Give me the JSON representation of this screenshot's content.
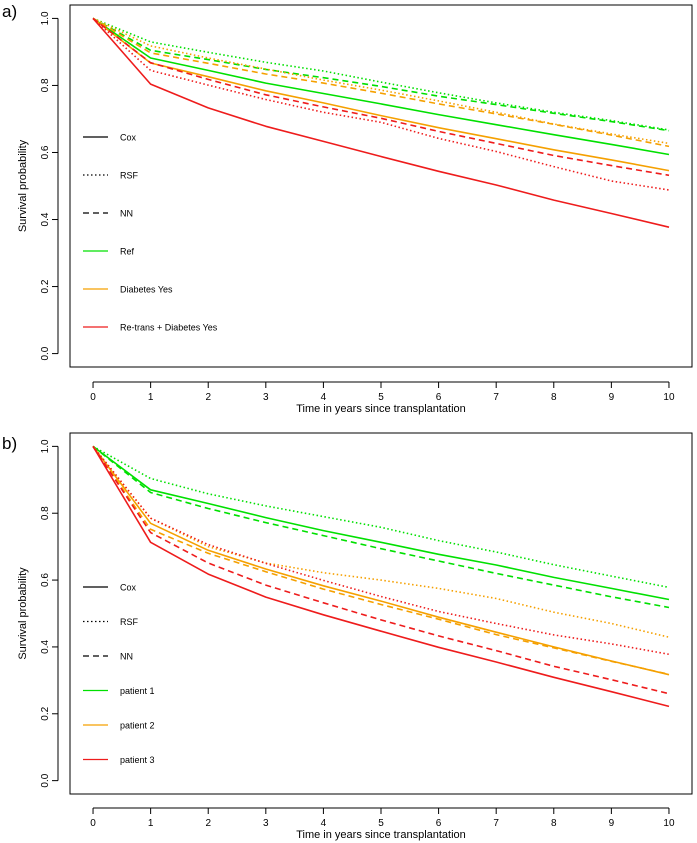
{
  "chart_data": [
    {
      "type": "line",
      "panel_label": "a)",
      "title": "",
      "xlabel": "Time in years since transplantation",
      "ylabel": "Survival probability",
      "x": [
        0,
        1,
        2,
        3,
        4,
        5,
        6,
        7,
        8,
        9,
        10
      ],
      "xticks": [
        "0",
        "1",
        "2",
        "3",
        "4",
        "5",
        "6",
        "7",
        "8",
        "9",
        "10"
      ],
      "yticks": [
        "0.0",
        "0.2",
        "0.4",
        "0.6",
        "0.8",
        "1.0"
      ],
      "xlim": [
        -0.4,
        10.4
      ],
      "ylim": [
        -0.04,
        1.04
      ],
      "legend": [
        {
          "label": "Cox",
          "style": "solid",
          "color": "#000000"
        },
        {
          "label": "RSF",
          "style": "dotted",
          "color": "#000000"
        },
        {
          "label": "NN",
          "style": "dashed",
          "color": "#000000"
        },
        {
          "label": "Ref",
          "style": "solid",
          "color": "#00e000"
        },
        {
          "label": "Diabetes Yes",
          "style": "solid",
          "color": "#f5a000"
        },
        {
          "label": "Re-trans + Diabetes Yes",
          "style": "solid",
          "color": "#ee1c1c"
        }
      ],
      "series": [
        {
          "name": "Ref Cox",
          "color": "#00e000",
          "style": "solid",
          "values": [
            1.0,
            0.882,
            0.845,
            0.807,
            0.776,
            0.745,
            0.713,
            0.683,
            0.653,
            0.624,
            0.594
          ]
        },
        {
          "name": "Ref RSF",
          "color": "#00e000",
          "style": "dotted",
          "values": [
            1.0,
            0.93,
            0.899,
            0.869,
            0.843,
            0.81,
            0.778,
            0.748,
            0.72,
            0.695,
            0.667
          ]
        },
        {
          "name": "Ref NN",
          "color": "#00e000",
          "style": "dashed",
          "values": [
            1.0,
            0.905,
            0.877,
            0.848,
            0.823,
            0.797,
            0.768,
            0.743,
            0.717,
            0.692,
            0.665
          ]
        },
        {
          "name": "Diabetes Yes Cox",
          "color": "#f5a000",
          "style": "solid",
          "values": [
            1.0,
            0.867,
            0.826,
            0.784,
            0.748,
            0.71,
            0.674,
            0.641,
            0.608,
            0.578,
            0.546
          ]
        },
        {
          "name": "Diabetes Yes RSF",
          "color": "#f5a000",
          "style": "dotted",
          "values": [
            1.0,
            0.918,
            0.882,
            0.849,
            0.816,
            0.786,
            0.754,
            0.72,
            0.685,
            0.655,
            0.627
          ]
        },
        {
          "name": "Diabetes Yes NN",
          "color": "#f5a000",
          "style": "dashed",
          "values": [
            1.0,
            0.897,
            0.866,
            0.834,
            0.807,
            0.777,
            0.745,
            0.715,
            0.684,
            0.652,
            0.618
          ]
        },
        {
          "name": "Re-trans + Diabetes Yes Cox",
          "color": "#ee1c1c",
          "style": "solid",
          "values": [
            1.0,
            0.804,
            0.733,
            0.678,
            0.633,
            0.588,
            0.544,
            0.503,
            0.458,
            0.418,
            0.377
          ]
        },
        {
          "name": "Re-trans + Diabetes Yes RSF",
          "color": "#ee1c1c",
          "style": "dotted",
          "values": [
            1.0,
            0.845,
            0.801,
            0.758,
            0.72,
            0.69,
            0.642,
            0.603,
            0.558,
            0.515,
            0.488
          ]
        },
        {
          "name": "Re-trans + Diabetes Yes NN",
          "color": "#ee1c1c",
          "style": "dashed",
          "values": [
            1.0,
            0.868,
            0.818,
            0.772,
            0.736,
            0.702,
            0.663,
            0.627,
            0.591,
            0.561,
            0.532
          ]
        }
      ]
    },
    {
      "type": "line",
      "panel_label": "b)",
      "title": "",
      "xlabel": "Time in years since transplantation",
      "ylabel": "Survival probability",
      "x": [
        0,
        1,
        2,
        3,
        4,
        5,
        6,
        7,
        8,
        9,
        10
      ],
      "xticks": [
        "0",
        "1",
        "2",
        "3",
        "4",
        "5",
        "6",
        "7",
        "8",
        "9",
        "10"
      ],
      "yticks": [
        "0.0",
        "0.2",
        "0.4",
        "0.6",
        "0.8",
        "1.0"
      ],
      "xlim": [
        -0.4,
        10.4
      ],
      "ylim": [
        -0.04,
        1.04
      ],
      "legend": [
        {
          "label": "Cox",
          "style": "solid",
          "color": "#000000"
        },
        {
          "label": "RSF",
          "style": "dotted",
          "color": "#000000"
        },
        {
          "label": "NN",
          "style": "dashed",
          "color": "#000000"
        },
        {
          "label": "patient 1",
          "style": "solid",
          "color": "#00e000"
        },
        {
          "label": "patient 2",
          "style": "solid",
          "color": "#f5a000"
        },
        {
          "label": "patient 3",
          "style": "solid",
          "color": "#ee1c1c"
        }
      ],
      "series": [
        {
          "name": "patient 1 Cox",
          "color": "#00e000",
          "style": "solid",
          "values": [
            1.0,
            0.87,
            0.829,
            0.787,
            0.748,
            0.713,
            0.677,
            0.645,
            0.608,
            0.575,
            0.542
          ]
        },
        {
          "name": "patient 1 RSF",
          "color": "#00e000",
          "style": "dotted",
          "values": [
            1.0,
            0.904,
            0.858,
            0.822,
            0.79,
            0.758,
            0.718,
            0.684,
            0.646,
            0.612,
            0.578
          ]
        },
        {
          "name": "patient 1 NN",
          "color": "#00e000",
          "style": "dashed",
          "values": [
            1.0,
            0.862,
            0.814,
            0.772,
            0.733,
            0.694,
            0.657,
            0.62,
            0.585,
            0.55,
            0.518
          ]
        },
        {
          "name": "patient 2 Cox",
          "color": "#f5a000",
          "style": "solid",
          "values": [
            1.0,
            0.77,
            0.689,
            0.633,
            0.583,
            0.537,
            0.489,
            0.444,
            0.4,
            0.358,
            0.317
          ]
        },
        {
          "name": "patient 2 RSF",
          "color": "#f5a000",
          "style": "dotted",
          "values": [
            1.0,
            0.785,
            0.7,
            0.651,
            0.622,
            0.6,
            0.575,
            0.545,
            0.504,
            0.47,
            0.429
          ]
        },
        {
          "name": "patient 2 NN",
          "color": "#f5a000",
          "style": "dashed",
          "values": [
            1.0,
            0.752,
            0.68,
            0.625,
            0.573,
            0.527,
            0.483,
            0.437,
            0.397,
            0.357,
            0.318
          ]
        },
        {
          "name": "patient 3 Cox",
          "color": "#ee1c1c",
          "style": "solid",
          "values": [
            1.0,
            0.713,
            0.618,
            0.549,
            0.496,
            0.447,
            0.399,
            0.355,
            0.309,
            0.266,
            0.222
          ]
        },
        {
          "name": "patient 3 RSF",
          "color": "#ee1c1c",
          "style": "dotted",
          "values": [
            1.0,
            0.785,
            0.706,
            0.65,
            0.599,
            0.551,
            0.506,
            0.47,
            0.436,
            0.409,
            0.378
          ]
        },
        {
          "name": "patient 3 NN",
          "color": "#ee1c1c",
          "style": "dashed",
          "values": [
            1.0,
            0.742,
            0.651,
            0.585,
            0.532,
            0.481,
            0.433,
            0.389,
            0.342,
            0.302,
            0.26
          ]
        }
      ]
    }
  ]
}
